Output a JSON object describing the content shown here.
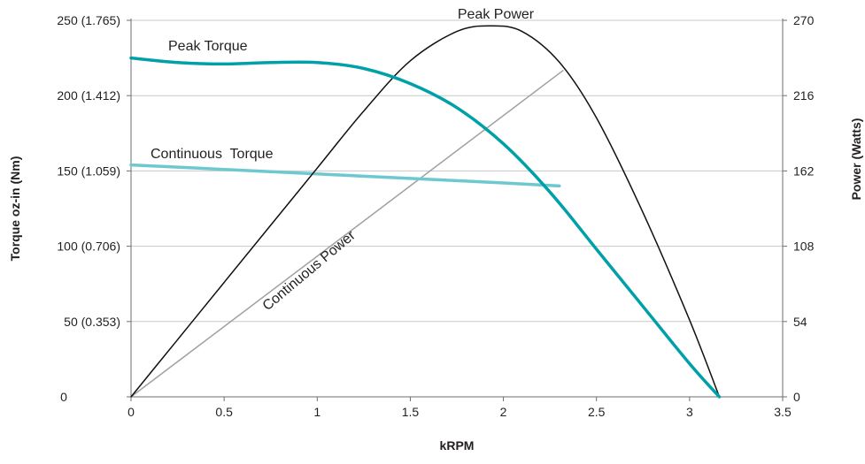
{
  "chart_data": {
    "type": "line",
    "xlabel": "kRPM",
    "ylabel_left": "Torque oz-in (Nm)",
    "ylabel_right": "Power (Watts)",
    "xlim": [
      0,
      3.5
    ],
    "ylim_left": [
      0,
      250
    ],
    "ylim_right": [
      0,
      270
    ],
    "grid": "horizontal",
    "x_ticks": [
      "0",
      "0.5",
      "1",
      "1.5",
      "2",
      "2.5",
      "3",
      "3.5"
    ],
    "y_left_ticks": [
      "0",
      "50 (0.353)",
      "100 (0.706)",
      "150 (1.059)",
      "200 (1.412)",
      "250 (1.765)"
    ],
    "y_right_ticks": [
      "0",
      "54",
      "108",
      "162",
      "216",
      "270"
    ],
    "colors": {
      "peak_torque": "#00a0a8",
      "continuous_torque": "#6ec8cf",
      "peak_power": "#111111",
      "continuous_power": "#a0a0a0",
      "grid": "#c8c8c8",
      "axis": "#6d6e71"
    },
    "series": [
      {
        "name": "Peak Torque",
        "axis": "left",
        "x": [
          0,
          0.25,
          0.5,
          0.75,
          1.0,
          1.25,
          1.5,
          1.75,
          2.0,
          2.25,
          2.5,
          2.75,
          3.0,
          3.16
        ],
        "values": [
          225,
          222,
          221,
          222,
          222,
          218,
          208,
          192,
          168,
          136,
          98,
          60,
          22,
          0
        ]
      },
      {
        "name": "Continuous Torque",
        "axis": "left",
        "x": [
          0,
          0.5,
          1.0,
          1.5,
          2.0,
          2.3
        ],
        "values": [
          154,
          151,
          148,
          145,
          142,
          140
        ]
      },
      {
        "name": "Peak Power",
        "axis": "right",
        "x": [
          0,
          0.25,
          0.5,
          0.75,
          1.0,
          1.25,
          1.5,
          1.75,
          1.93,
          2.1,
          2.3,
          2.5,
          2.75,
          3.0,
          3.16
        ],
        "values": [
          0,
          41,
          82,
          123,
          164,
          205,
          241,
          262,
          266,
          262,
          240,
          200,
          132,
          55,
          0
        ]
      },
      {
        "name": "Continuous Power",
        "axis": "right",
        "x": [
          0,
          2.32
        ],
        "values": [
          0,
          234
        ]
      }
    ]
  }
}
